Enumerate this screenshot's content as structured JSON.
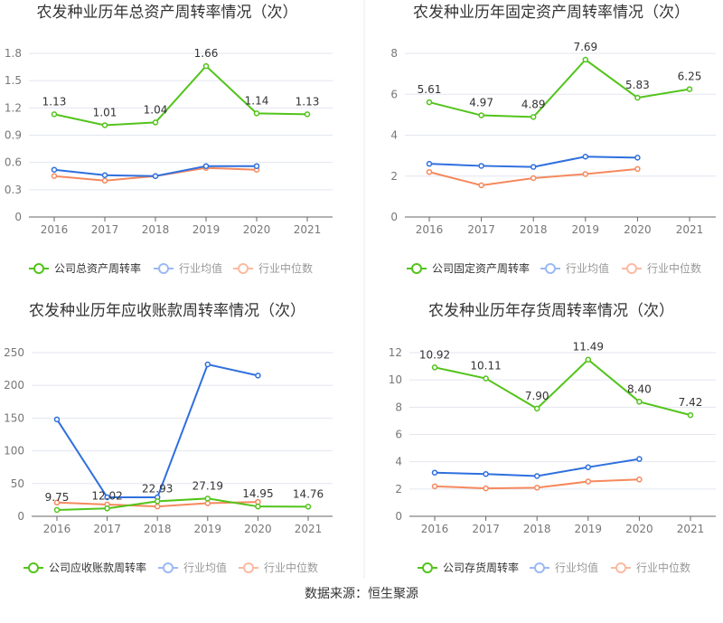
{
  "source": "数据来源：恒生聚源",
  "colors": {
    "company": "#52c41a",
    "avg": "#2f6fde",
    "median": "#f5895e"
  },
  "chart_data": [
    {
      "type": "line",
      "title": "农发种业历年总资产周转率情况（次）",
      "categories": [
        "2016",
        "2017",
        "2018",
        "2019",
        "2020",
        "2021"
      ],
      "ylim": [
        0,
        1.8
      ],
      "yticks": [
        "0",
        "0.3",
        "0.6",
        "0.9",
        "1.2",
        "1.5",
        "1.8"
      ],
      "legend_position": "bottom",
      "series": [
        {
          "name": "公司总资产周转率",
          "values": [
            1.13,
            1.01,
            1.04,
            1.66,
            1.14,
            1.13
          ],
          "labels": [
            "1.13",
            "1.01",
            "1.04",
            "1.66",
            "1.14",
            "1.13"
          ]
        },
        {
          "name": "行业均值",
          "values": [
            0.52,
            0.46,
            0.45,
            0.56,
            0.56,
            null
          ]
        },
        {
          "name": "行业中位数",
          "values": [
            0.45,
            0.4,
            0.45,
            0.54,
            0.52,
            null
          ]
        }
      ]
    },
    {
      "type": "line",
      "title": "农发种业历年固定资产周转率情况（次）",
      "categories": [
        "2016",
        "2017",
        "2018",
        "2019",
        "2020",
        "2021"
      ],
      "ylim": [
        0,
        8
      ],
      "yticks": [
        "0",
        "2",
        "4",
        "6",
        "8"
      ],
      "legend_position": "bottom",
      "series": [
        {
          "name": "公司固定资产周转率",
          "values": [
            5.61,
            4.97,
            4.89,
            7.69,
            5.83,
            6.25
          ],
          "labels": [
            "5.61",
            "4.97",
            "4.89",
            "7.69",
            "5.83",
            "6.25"
          ]
        },
        {
          "name": "行业均值",
          "values": [
            2.6,
            2.5,
            2.45,
            2.95,
            2.9,
            null
          ]
        },
        {
          "name": "行业中位数",
          "values": [
            2.2,
            1.55,
            1.9,
            2.1,
            2.35,
            null
          ]
        }
      ]
    },
    {
      "type": "line",
      "title": "农发种业历年应收账款周转率情况（次）",
      "categories": [
        "2016",
        "2017",
        "2018",
        "2019",
        "2020",
        "2021"
      ],
      "ylim": [
        0,
        250
      ],
      "yticks": [
        "0",
        "50",
        "100",
        "150",
        "200",
        "250"
      ],
      "legend_position": "bottom",
      "series": [
        {
          "name": "公司应收账款周转率",
          "values": [
            9.75,
            12.02,
            22.93,
            27.19,
            14.95,
            14.76
          ],
          "labels": [
            "9.75",
            "12.02",
            "22.93",
            "27.19",
            "14.95",
            "14.76"
          ]
        },
        {
          "name": "行业均值",
          "values": [
            148,
            29,
            29,
            232,
            215,
            null
          ]
        },
        {
          "name": "行业中位数",
          "values": [
            21,
            18,
            15,
            20,
            22,
            null
          ]
        }
      ]
    },
    {
      "type": "line",
      "title": "农发种业历年存货周转率情况（次）",
      "categories": [
        "2016",
        "2017",
        "2018",
        "2019",
        "2020",
        "2021"
      ],
      "ylim": [
        0,
        12
      ],
      "yticks": [
        "0",
        "2",
        "4",
        "6",
        "8",
        "10",
        "12"
      ],
      "legend_position": "bottom",
      "series": [
        {
          "name": "公司存货周转率",
          "values": [
            10.92,
            10.11,
            7.9,
            11.49,
            8.4,
            7.42
          ],
          "labels": [
            "10.92",
            "10.11",
            "7.90",
            "11.49",
            "8.40",
            "7.42"
          ]
        },
        {
          "name": "行业均值",
          "values": [
            3.2,
            3.1,
            2.95,
            3.6,
            4.2,
            null
          ]
        },
        {
          "name": "行业中位数",
          "values": [
            2.2,
            2.05,
            2.1,
            2.55,
            2.7,
            null
          ]
        }
      ]
    }
  ]
}
